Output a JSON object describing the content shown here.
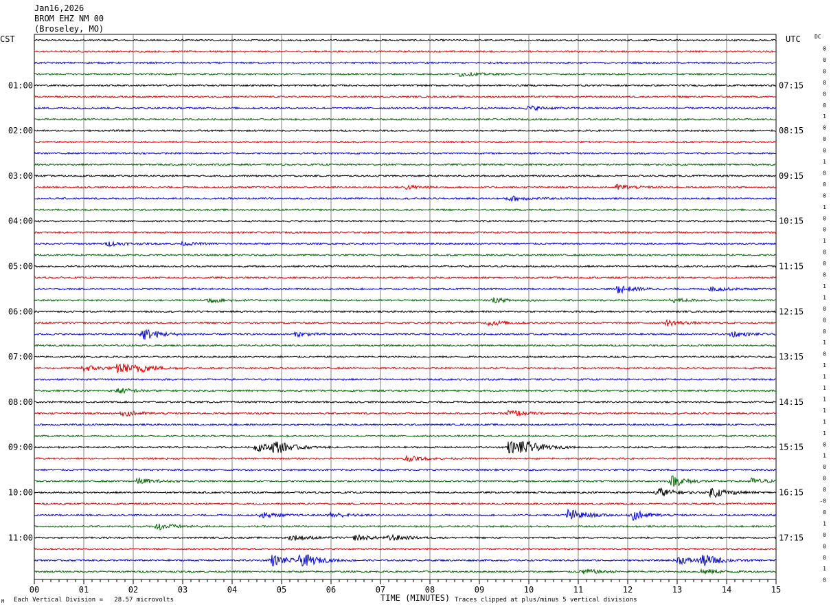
{
  "header": {
    "date": "Jan16,2026",
    "station": "BROM EHZ NM 00",
    "location": "(Broseley, MO)"
  },
  "left_label": "CST",
  "right_label": "UTC",
  "dc_label": "DC",
  "footer": {
    "vertical_division": "Each Vertical Division =   28.57 microvolts",
    "x_title": "TIME (MINUTES)",
    "clip_note": "Traces clipped at plus/minus 5 vertical divisions",
    "corner_mark": "M"
  },
  "colors": {
    "trace_cycle": [
      "#000000",
      "#e00000",
      "#0000e0",
      "#006400"
    ],
    "grid": "#808080"
  },
  "chart_data": {
    "type": "line",
    "description_kind": "helicorder seismogram, 48 traces of 15 minutes each",
    "xlabel": "TIME (MINUTES)",
    "xlim": [
      0,
      15
    ],
    "x_ticks": [
      "00",
      "01",
      "02",
      "03",
      "04",
      "05",
      "06",
      "07",
      "08",
      "09",
      "10",
      "11",
      "12",
      "13",
      "14",
      "15"
    ],
    "trace_count": 48,
    "left_time_labels": [
      {
        "trace": 4,
        "label": "01:00"
      },
      {
        "trace": 8,
        "label": "02:00"
      },
      {
        "trace": 12,
        "label": "03:00"
      },
      {
        "trace": 16,
        "label": "04:00"
      },
      {
        "trace": 20,
        "label": "05:00"
      },
      {
        "trace": 24,
        "label": "06:00"
      },
      {
        "trace": 28,
        "label": "07:00"
      },
      {
        "trace": 32,
        "label": "08:00"
      },
      {
        "trace": 36,
        "label": "09:00"
      },
      {
        "trace": 40,
        "label": "10:00"
      },
      {
        "trace": 44,
        "label": "11:00"
      }
    ],
    "right_time_labels": [
      {
        "trace": 4,
        "label": "07:15"
      },
      {
        "trace": 8,
        "label": "08:15"
      },
      {
        "trace": 12,
        "label": "09:15"
      },
      {
        "trace": 16,
        "label": "10:15"
      },
      {
        "trace": 20,
        "label": "11:15"
      },
      {
        "trace": 24,
        "label": "12:15"
      },
      {
        "trace": 28,
        "label": "13:15"
      },
      {
        "trace": 32,
        "label": "14:15"
      },
      {
        "trace": 36,
        "label": "15:15"
      },
      {
        "trace": 40,
        "label": "16:15"
      },
      {
        "trace": 44,
        "label": "17:15"
      }
    ],
    "dc_offsets": [
      "0",
      "0",
      "0",
      "0",
      "0",
      "0",
      "1",
      "0",
      "0",
      "0",
      "1",
      "0",
      "0",
      "0",
      "1",
      "0",
      "0",
      "1",
      "0",
      "0",
      "0",
      "1",
      "1",
      "0",
      "0",
      "0",
      "1",
      "0",
      "1",
      "1",
      "1",
      "1",
      "1",
      "1",
      "1",
      "0",
      "1",
      "0",
      "0",
      "0",
      "-0",
      "0",
      "1",
      "0",
      "0",
      "0",
      "1",
      "0"
    ],
    "noise_amplitude": 1.2,
    "events": [
      {
        "trace": 3,
        "minute": 8.6,
        "amp": 3
      },
      {
        "trace": 6,
        "minute": 10.0,
        "amp": 3
      },
      {
        "trace": 13,
        "minute": 7.5,
        "amp": 3
      },
      {
        "trace": 13,
        "minute": 11.8,
        "amp": 4
      },
      {
        "trace": 14,
        "minute": 9.6,
        "amp": 4
      },
      {
        "trace": 18,
        "minute": 1.5,
        "amp": 3
      },
      {
        "trace": 18,
        "minute": 3.0,
        "amp": 2
      },
      {
        "trace": 22,
        "minute": 11.8,
        "amp": 6
      },
      {
        "trace": 22,
        "minute": 13.7,
        "amp": 3
      },
      {
        "trace": 23,
        "minute": 3.5,
        "amp": 4
      },
      {
        "trace": 23,
        "minute": 9.3,
        "amp": 3
      },
      {
        "trace": 23,
        "minute": 12.9,
        "amp": 3
      },
      {
        "trace": 25,
        "minute": 9.2,
        "amp": 4
      },
      {
        "trace": 25,
        "minute": 12.8,
        "amp": 4
      },
      {
        "trace": 26,
        "minute": 2.2,
        "amp": 9
      },
      {
        "trace": 26,
        "minute": 5.3,
        "amp": 3
      },
      {
        "trace": 26,
        "minute": 14.1,
        "amp": 4
      },
      {
        "trace": 29,
        "minute": 1.0,
        "amp": 5
      },
      {
        "trace": 29,
        "minute": 1.7,
        "amp": 8
      },
      {
        "trace": 29,
        "minute": 2.1,
        "amp": 5
      },
      {
        "trace": 31,
        "minute": 1.7,
        "amp": 4
      },
      {
        "trace": 33,
        "minute": 1.8,
        "amp": 4
      },
      {
        "trace": 33,
        "minute": 9.6,
        "amp": 5
      },
      {
        "trace": 36,
        "minute": 4.5,
        "amp": 6
      },
      {
        "trace": 36,
        "minute": 4.85,
        "amp": 9
      },
      {
        "trace": 36,
        "minute": 9.6,
        "amp": 10
      },
      {
        "trace": 36,
        "minute": 9.85,
        "amp": 8
      },
      {
        "trace": 37,
        "minute": 7.5,
        "amp": 4
      },
      {
        "trace": 39,
        "minute": 2.1,
        "amp": 4
      },
      {
        "trace": 39,
        "minute": 12.9,
        "amp": 8
      },
      {
        "trace": 39,
        "minute": 14.5,
        "amp": 4
      },
      {
        "trace": 40,
        "minute": 12.6,
        "amp": 7
      },
      {
        "trace": 40,
        "minute": 13.7,
        "amp": 8
      },
      {
        "trace": 42,
        "minute": 4.6,
        "amp": 4
      },
      {
        "trace": 42,
        "minute": 6.0,
        "amp": 4
      },
      {
        "trace": 42,
        "minute": 10.8,
        "amp": 9
      },
      {
        "trace": 42,
        "minute": 12.1,
        "amp": 7
      },
      {
        "trace": 43,
        "minute": 2.5,
        "amp": 5
      },
      {
        "trace": 44,
        "minute": 5.2,
        "amp": 4
      },
      {
        "trace": 44,
        "minute": 6.5,
        "amp": 4
      },
      {
        "trace": 44,
        "minute": 7.2,
        "amp": 4
      },
      {
        "trace": 46,
        "minute": 4.8,
        "amp": 8
      },
      {
        "trace": 46,
        "minute": 5.4,
        "amp": 10
      },
      {
        "trace": 46,
        "minute": 13.0,
        "amp": 6
      },
      {
        "trace": 46,
        "minute": 13.5,
        "amp": 9
      },
      {
        "trace": 47,
        "minute": 11.1,
        "amp": 4
      },
      {
        "trace": 47,
        "minute": 13.5,
        "amp": 4
      }
    ]
  }
}
